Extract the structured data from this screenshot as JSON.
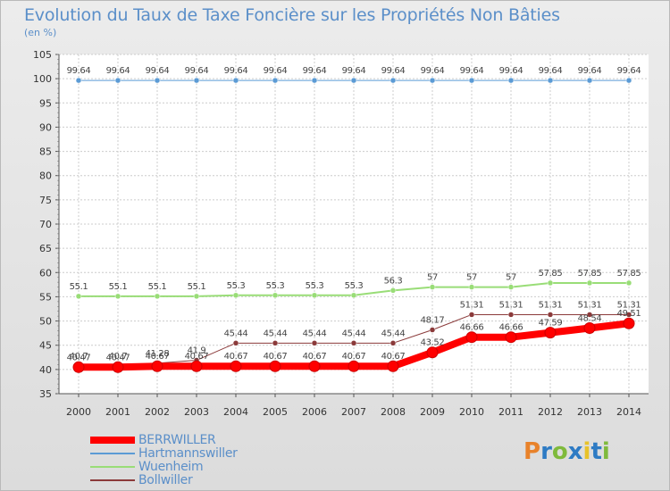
{
  "title": "Evolution du Taux de Taxe Foncière sur les Propriétés Non Bâties",
  "unit_label": "(en %)",
  "logo": {
    "text": "Proxiti",
    "colors": [
      "#e8822a",
      "#2e7bc4",
      "#7fba3c",
      "#2e7bc4",
      "#e8c22a",
      "#2e7bc4",
      "#7fba3c"
    ]
  },
  "chart_data": {
    "type": "line",
    "title": "Evolution du Taux de Taxe Foncière sur les Propriétés Non Bâties",
    "ylabel": "(en %)",
    "xlabel": "",
    "ylim": [
      35,
      105
    ],
    "yticks": [
      "35",
      "40",
      "45",
      "50",
      "55",
      "60",
      "65",
      "70",
      "75",
      "80",
      "85",
      "90",
      "95",
      "100",
      "105"
    ],
    "x": [
      "2000",
      "2001",
      "2002",
      "2003",
      "2004",
      "2005",
      "2006",
      "2007",
      "2008",
      "2009",
      "2010",
      "2011",
      "2012",
      "2013",
      "2014"
    ],
    "grid": true,
    "series": [
      {
        "name": "Hartmannswiller",
        "color": "#5b9bd5",
        "width": 1,
        "marker": 3,
        "values": [
          99.64,
          99.64,
          99.64,
          99.64,
          99.64,
          99.64,
          99.64,
          99.64,
          99.64,
          99.64,
          99.64,
          99.64,
          99.64,
          99.64,
          99.64
        ],
        "labels": [
          "99.64",
          "99.64",
          "99.64",
          "99.64",
          "99.64",
          "99.64",
          "99.64",
          "99.64",
          "99.64",
          "99.64",
          "99.64",
          "99.64",
          "99.64",
          "99.64",
          "99.64"
        ]
      },
      {
        "name": "Wuenheim",
        "color": "#99dd77",
        "width": 2,
        "marker": 3,
        "values": [
          55.1,
          55.1,
          55.1,
          55.1,
          55.3,
          55.3,
          55.3,
          55.3,
          56.3,
          57,
          57,
          57,
          57.85,
          57.85,
          57.85
        ],
        "labels": [
          "55.1",
          "55.1",
          "55.1",
          "55.1",
          "55.3",
          "55.3",
          "55.3",
          "55.3",
          "56.3",
          "57",
          "57",
          "57",
          "57.85",
          "57.85",
          "57.85"
        ]
      },
      {
        "name": "Bollwiller",
        "color": "#8b3a3a",
        "width": 1,
        "marker": 3,
        "values": [
          40.7,
          40.7,
          41.28,
          41.9,
          45.44,
          45.44,
          45.44,
          45.44,
          45.44,
          48.17,
          51.31,
          51.31,
          51.31,
          51.31,
          51.31
        ],
        "labels": [
          "40.7",
          "40.7",
          "41.28",
          "41.9",
          "45.44",
          "45.44",
          "45.44",
          "45.44",
          "45.44",
          "48.17",
          "51.31",
          "51.31",
          "51.31",
          "51.31",
          "51.31"
        ]
      },
      {
        "name": "BERRWILLER",
        "color": "#ff0000",
        "width": 8,
        "marker": 6,
        "values": [
          40.47,
          40.47,
          40.67,
          40.67,
          40.67,
          40.67,
          40.67,
          40.67,
          40.67,
          43.52,
          46.66,
          46.66,
          47.59,
          48.54,
          49.51
        ],
        "labels": [
          "40.47",
          "40.47",
          "40.67",
          "40.67",
          "40.67",
          "40.67",
          "40.67",
          "40.67",
          "40.67",
          "43.52",
          "46.66",
          "46.66",
          "47.59",
          "48.54",
          "49.51"
        ]
      }
    ],
    "legend": {
      "placement": "bottom-left",
      "order": [
        "BERRWILLER",
        "Hartmannswiller",
        "Wuenheim",
        "Bollwiller"
      ]
    }
  }
}
